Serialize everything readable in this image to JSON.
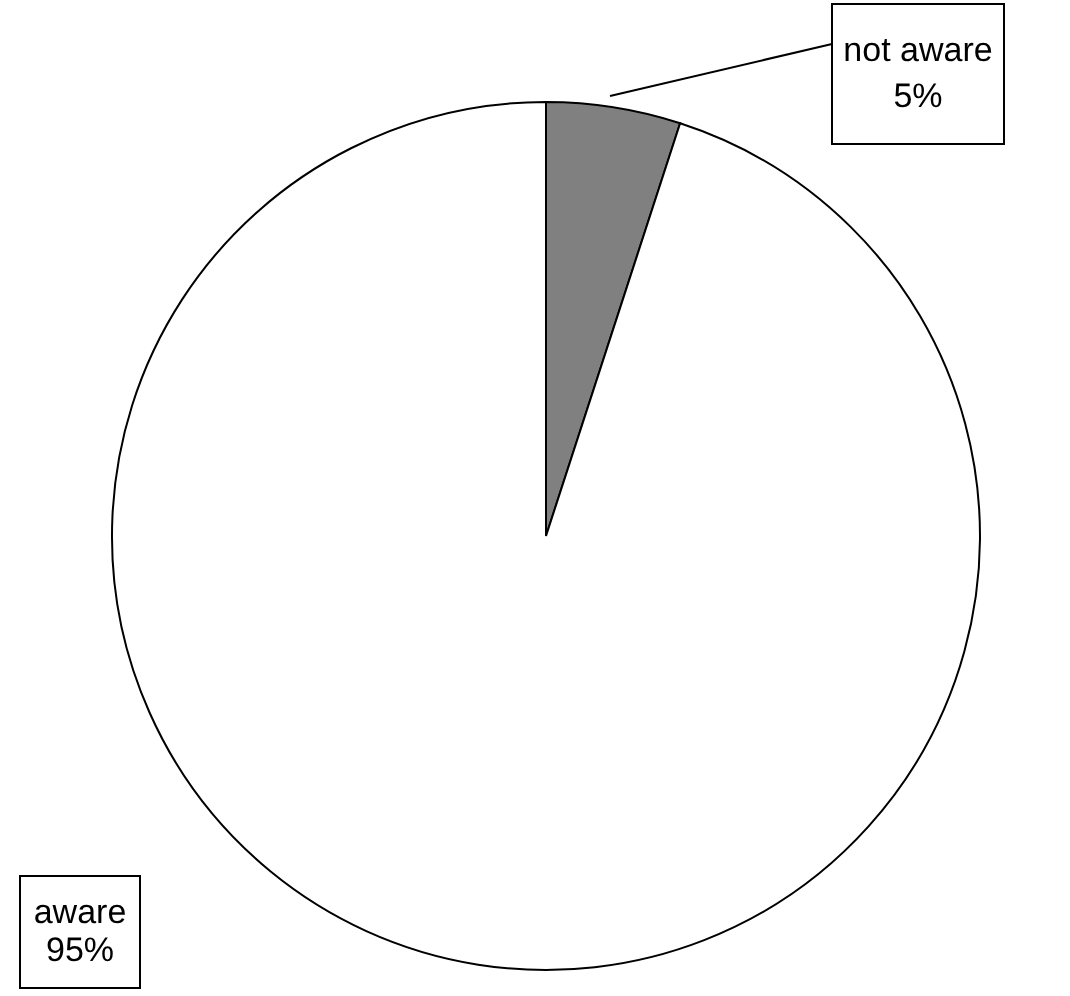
{
  "chart_data": {
    "type": "pie",
    "categories": [
      "not aware",
      "aware"
    ],
    "values": [
      5,
      95
    ],
    "colors": [
      "#808080",
      "#ffffff"
    ],
    "value_labels": [
      "5%",
      "95%"
    ]
  }
}
